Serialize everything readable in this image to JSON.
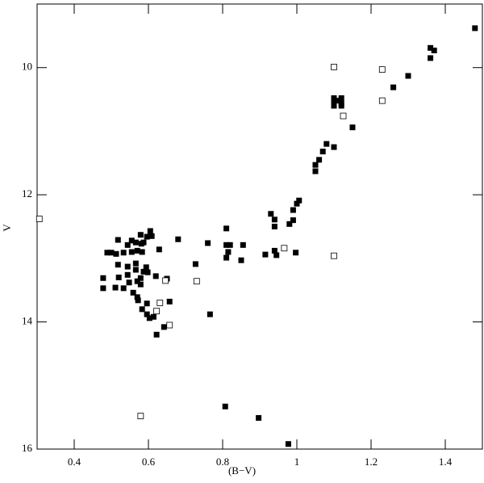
{
  "chart_data": {
    "type": "scatter",
    "xlabel": "(B−V)",
    "ylabel": "V",
    "xlim": [
      0.3,
      1.5
    ],
    "ylim": [
      9,
      16
    ],
    "invert_y": true,
    "xticks": [
      0.4,
      0.6,
      0.8,
      1,
      1.2,
      1.4
    ],
    "yticks": [
      10,
      12,
      14,
      16
    ],
    "series": [
      {
        "color": "#000000",
        "marker": "filled",
        "x": [
          1.48,
          1.36,
          1.37,
          1.36,
          1.3,
          1.26,
          1.1,
          1.1,
          1.1,
          1.12,
          1.12,
          1.12,
          1.11,
          1.15,
          1.1,
          1.08,
          1.07,
          1.06,
          1.05,
          1.05,
          1.006,
          1.0,
          0.99,
          0.93,
          0.94,
          0.99,
          0.98,
          0.94,
          0.81,
          0.855,
          0.81,
          0.82,
          0.76,
          0.68,
          0.94,
          0.815,
          0.915,
          0.945,
          0.997,
          0.81,
          0.85,
          0.727,
          0.65,
          0.657,
          0.766,
          0.807,
          0.897,
          0.977,
          0.518,
          0.489,
          0.5,
          0.513,
          0.533,
          0.555,
          0.57,
          0.581,
          0.579,
          0.605,
          0.609,
          0.596,
          0.566,
          0.555,
          0.544,
          0.583,
          0.629,
          0.518,
          0.544,
          0.566,
          0.594,
          0.598,
          0.566,
          0.544,
          0.52,
          0.478,
          0.511,
          0.533,
          0.548,
          0.57,
          0.579,
          0.559,
          0.572,
          0.596,
          0.583,
          0.596,
          0.603,
          0.614,
          0.57,
          0.579,
          0.62,
          0.587,
          0.642,
          0.622,
          0.478,
          0.587
        ],
        "y": [
          9.38,
          9.69,
          9.73,
          9.85,
          10.13,
          10.31,
          10.48,
          10.56,
          10.6,
          10.48,
          10.56,
          10.6,
          10.52,
          10.94,
          11.25,
          11.2,
          11.32,
          11.45,
          11.53,
          11.63,
          12.09,
          12.14,
          12.24,
          12.3,
          12.39,
          12.4,
          12.46,
          12.5,
          12.53,
          12.79,
          12.79,
          12.79,
          12.76,
          12.7,
          12.88,
          12.9,
          12.94,
          12.95,
          12.91,
          12.99,
          13.03,
          13.09,
          13.32,
          13.68,
          13.88,
          15.33,
          15.51,
          15.92,
          12.71,
          12.91,
          12.91,
          12.93,
          12.91,
          12.9,
          12.88,
          12.77,
          12.63,
          12.57,
          12.65,
          12.66,
          12.75,
          12.72,
          12.79,
          12.9,
          12.86,
          13.1,
          13.13,
          13.08,
          13.14,
          13.22,
          13.18,
          13.26,
          13.3,
          13.31,
          13.46,
          13.47,
          13.38,
          13.36,
          13.41,
          13.54,
          13.66,
          13.71,
          13.8,
          13.88,
          13.94,
          13.92,
          13.61,
          13.31,
          13.28,
          13.21,
          14.08,
          14.2,
          13.47,
          12.75
        ]
      },
      {
        "color": "#000000",
        "marker": "open",
        "x": [
          0.306,
          1.1,
          1.23,
          1.23,
          1.125,
          1.1,
          0.966,
          0.73,
          0.646,
          0.631,
          0.622,
          0.657,
          0.579
        ],
        "y": [
          12.38,
          9.99,
          10.03,
          10.52,
          10.76,
          12.96,
          12.84,
          13.36,
          13.35,
          13.7,
          13.83,
          14.05,
          15.48
        ]
      }
    ]
  }
}
